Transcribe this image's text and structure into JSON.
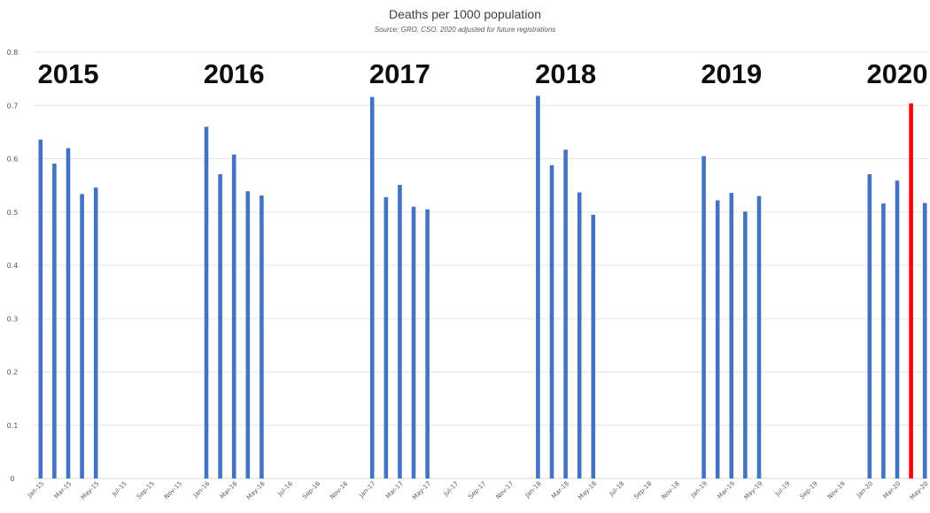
{
  "chart_data": {
    "type": "bar",
    "title": "Deaths per 1000 population",
    "subtitle": "Source; GRO, CSO. 2020 adjusted for future registrations",
    "xlabel": "",
    "ylabel": "",
    "ylim": [
      0,
      0.8
    ],
    "yticks": [
      "0",
      "0.1",
      "0.2",
      "0.3",
      "0.4",
      "0.5",
      "0.6",
      "0.7",
      "0.8"
    ],
    "grid": true,
    "legend": "none",
    "colors": {
      "bar": "#4472c4",
      "highlight": "#ff0000",
      "grid": "#e6e6e6",
      "axis": "#d9d9d9"
    },
    "year_annotations": [
      "2015",
      "2016",
      "2017",
      "2018",
      "2019",
      "2020"
    ],
    "categories": [
      "Jan-15",
      "Feb-15",
      "Mar-15",
      "Apr-15",
      "May-15",
      "Jun-15",
      "Jul-15",
      "Aug-15",
      "Sep-15",
      "Oct-15",
      "Nov-15",
      "Dec-15",
      "Jan-16",
      "Feb-16",
      "Mar-16",
      "Apr-16",
      "May-16",
      "Jun-16",
      "Jul-16",
      "Aug-16",
      "Sep-16",
      "Oct-16",
      "Nov-16",
      "Dec-16",
      "Jan-17",
      "Feb-17",
      "Mar-17",
      "Apr-17",
      "May-17",
      "Jun-17",
      "Jul-17",
      "Aug-17",
      "Sep-17",
      "Oct-17",
      "Nov-17",
      "Dec-17",
      "Jan-18",
      "Feb-18",
      "Mar-18",
      "Apr-18",
      "May-18",
      "Jun-18",
      "Jul-18",
      "Aug-18",
      "Sep-18",
      "Oct-18",
      "Nov-18",
      "Dec-18",
      "Jan-19",
      "Feb-19",
      "Mar-19",
      "Apr-19",
      "May-19",
      "Jun-19",
      "Jul-19",
      "Aug-19",
      "Sep-19",
      "Oct-19",
      "Nov-19",
      "Dec-19",
      "Jan-20",
      "Feb-20",
      "Mar-20",
      "Apr-20",
      "May-20"
    ],
    "tick_labels": [
      "Jan-15",
      "Mar-15",
      "May-15",
      "Jul-15",
      "Sep-15",
      "Nov-15",
      "Jan-16",
      "Mar-16",
      "May-16",
      "Jul-16",
      "Sep-16",
      "Nov-16",
      "Jan-17",
      "Mar-17",
      "May-17",
      "Jul-17",
      "Sep-17",
      "Nov-17",
      "Jan-18",
      "Mar-18",
      "May-18",
      "Jul-18",
      "Sep-18",
      "Nov-18",
      "Jan-19",
      "Mar-19",
      "May-19",
      "Jul-19",
      "Sep-19",
      "Nov-19",
      "Jan-20",
      "Mar-20",
      "May-20"
    ],
    "values": [
      0.636,
      0.591,
      0.62,
      0.534,
      0.546,
      null,
      null,
      null,
      null,
      null,
      null,
      null,
      0.66,
      0.571,
      0.608,
      0.539,
      0.531,
      null,
      null,
      null,
      null,
      null,
      null,
      null,
      0.716,
      0.528,
      0.551,
      0.51,
      0.505,
      null,
      null,
      null,
      null,
      null,
      null,
      null,
      0.718,
      0.588,
      0.617,
      0.537,
      0.495,
      null,
      null,
      null,
      null,
      null,
      null,
      null,
      0.605,
      0.522,
      0.536,
      0.501,
      0.53,
      null,
      null,
      null,
      null,
      null,
      null,
      null,
      0.571,
      0.516,
      0.559,
      0.704,
      0.517
    ],
    "highlight_index": 63
  }
}
